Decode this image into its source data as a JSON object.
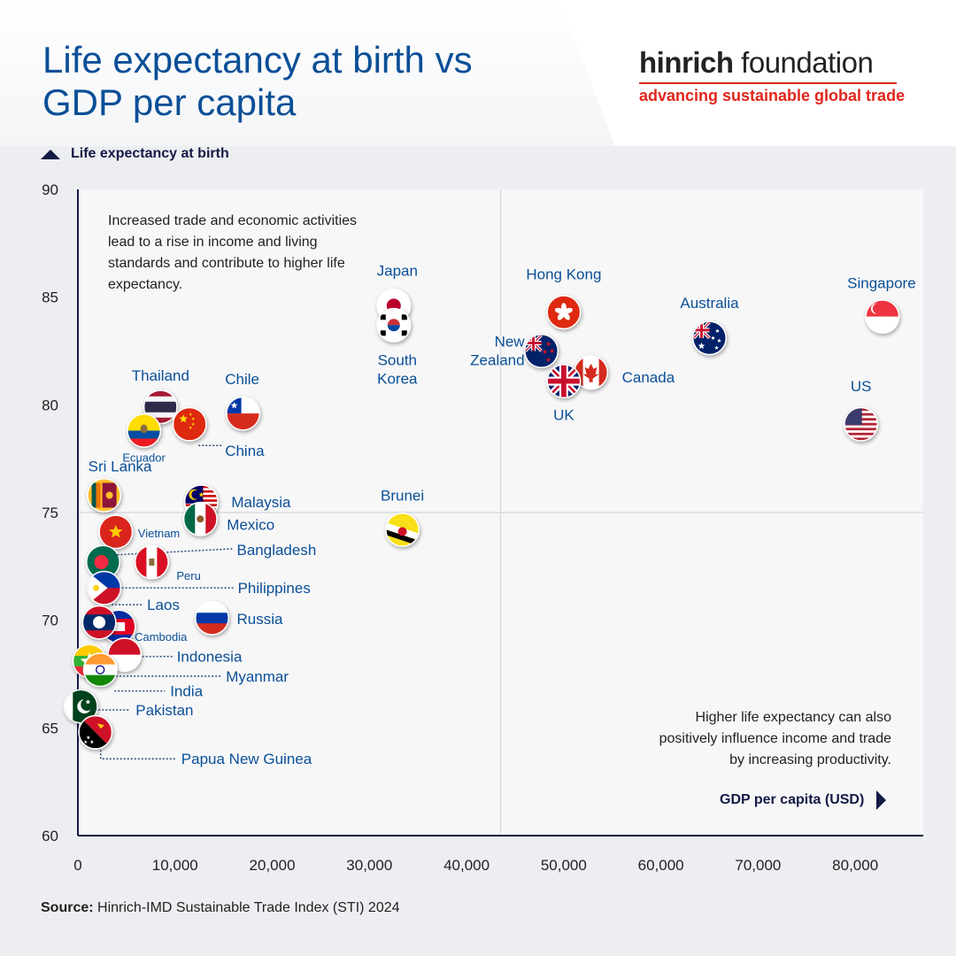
{
  "header": {
    "title": "Life expectancy at birth vs GDP per capita",
    "logo_bold": "hinrich",
    "logo_rest": " foundation",
    "logo_tagline": "advancing sustainable global trade"
  },
  "notes": {
    "top": "Increased trade and economic activities lead to a rise in income and living standards and contribute to higher life expectancy.",
    "bottom": "Higher life expectancy can also positively influence income and trade by increasing productivity."
  },
  "source": {
    "label": "Source:",
    "text": " Hinrich-IMD Sustainable Trade Index (STI) 2024"
  },
  "colors": {
    "title": "#0a4f97",
    "label": "#0a4f97",
    "axis": "#131a45",
    "accent": "#e1261c"
  },
  "chart_data": {
    "type": "scatter",
    "xlabel": "GDP per capita (USD)",
    "ylabel": "Life expectancy at birth",
    "xlim": [
      0,
      87000
    ],
    "ylim": [
      60,
      90
    ],
    "x_ticks": [
      0,
      10000,
      20000,
      30000,
      40000,
      50000,
      60000,
      70000,
      80000
    ],
    "x_tick_labels": [
      "0",
      "10,000",
      "20,000",
      "30,000",
      "40,000",
      "50,000",
      "60,000",
      "70,000",
      "80,000"
    ],
    "y_ticks": [
      60,
      65,
      70,
      75,
      80,
      85,
      90
    ],
    "y_tick_labels": [
      "60",
      "65",
      "70",
      "75",
      "80",
      "85",
      "90"
    ],
    "quadrant_lines": {
      "x": 43500,
      "y": 75
    },
    "grid": false,
    "points": [
      {
        "name": "Japan",
        "x": 32500,
        "y": 84.6,
        "flag": "japan"
      },
      {
        "name": "South Korea",
        "x": 32500,
        "y": 83.7,
        "flag": "south-korea"
      },
      {
        "name": "Hong Kong",
        "x": 50000,
        "y": 84.3,
        "flag": "hong-kong"
      },
      {
        "name": "Singapore",
        "x": 82800,
        "y": 84.1,
        "flag": "singapore"
      },
      {
        "name": "Australia",
        "x": 65000,
        "y": 83.1,
        "flag": "australia"
      },
      {
        "name": "New Zealand",
        "x": 47700,
        "y": 82.5,
        "flag": "new-zealand"
      },
      {
        "name": "Canada",
        "x": 52800,
        "y": 81.5,
        "flag": "canada"
      },
      {
        "name": "UK",
        "x": 50000,
        "y": 81.1,
        "flag": "uk"
      },
      {
        "name": "US",
        "x": 80600,
        "y": 79.1,
        "flag": "us"
      },
      {
        "name": "Thailand",
        "x": 8500,
        "y": 79.9,
        "flag": "thailand"
      },
      {
        "name": "Chile",
        "x": 17000,
        "y": 79.6,
        "flag": "chile"
      },
      {
        "name": "China",
        "x": 11500,
        "y": 79.1,
        "flag": "china"
      },
      {
        "name": "Ecuador",
        "x": 6800,
        "y": 78.8,
        "flag": "ecuador"
      },
      {
        "name": "Sri Lanka",
        "x": 2700,
        "y": 75.8,
        "flag": "sri-lanka"
      },
      {
        "name": "Malaysia",
        "x": 12700,
        "y": 75.5,
        "flag": "malaysia"
      },
      {
        "name": "Mexico",
        "x": 12600,
        "y": 74.7,
        "flag": "mexico"
      },
      {
        "name": "Brunei",
        "x": 33400,
        "y": 74.2,
        "flag": "brunei"
      },
      {
        "name": "Vietnam",
        "x": 3900,
        "y": 74.1,
        "flag": "vietnam"
      },
      {
        "name": "Bangladesh",
        "x": 2600,
        "y": 72.7,
        "flag": "bangladesh"
      },
      {
        "name": "Peru",
        "x": 7600,
        "y": 72.7,
        "flag": "peru"
      },
      {
        "name": "Philippines",
        "x": 2700,
        "y": 71.5,
        "flag": "philippines"
      },
      {
        "name": "Russia",
        "x": 13800,
        "y": 70.1,
        "flag": "russia"
      },
      {
        "name": "Cambodia",
        "x": 4200,
        "y": 69.7,
        "flag": "cambodia"
      },
      {
        "name": "Laos",
        "x": 2200,
        "y": 69.9,
        "flag": "laos"
      },
      {
        "name": "Indonesia",
        "x": 4800,
        "y": 68.4,
        "flag": "indonesia"
      },
      {
        "name": "Myanmar",
        "x": 1200,
        "y": 68.1,
        "flag": "myanmar"
      },
      {
        "name": "India",
        "x": 2300,
        "y": 67.7,
        "flag": "india"
      },
      {
        "name": "Pakistan",
        "x": 300,
        "y": 66.0,
        "flag": "pakistan"
      },
      {
        "name": "Papua New Guinea",
        "x": 1800,
        "y": 64.8,
        "flag": "papua-new-guinea"
      }
    ]
  }
}
